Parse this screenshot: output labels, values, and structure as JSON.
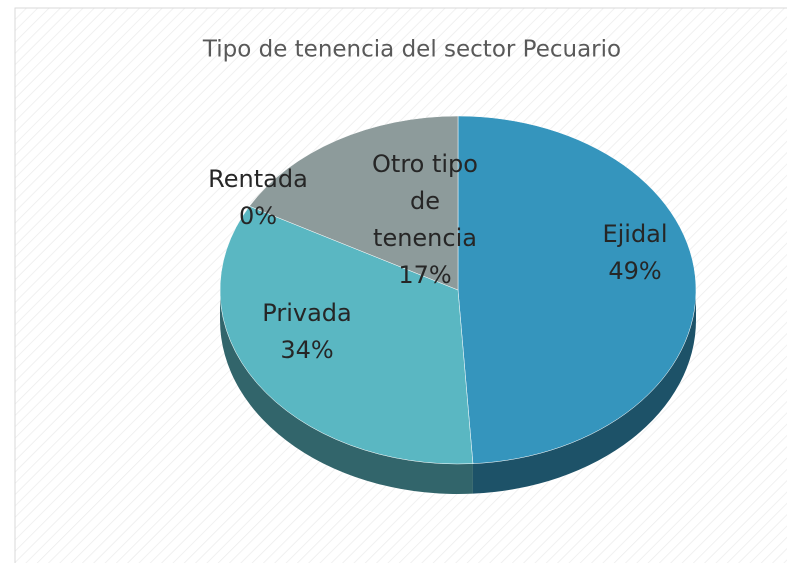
{
  "chart_data": {
    "type": "pie",
    "title": "Tipo de tenencia del sector Pecuario",
    "categories": [
      "Ejidal",
      "Privada",
      "Rentada",
      "Otro tipo de tenencia"
    ],
    "values": [
      49,
      34,
      0,
      17
    ],
    "value_labels": [
      "49%",
      "34%",
      "0%",
      "17%"
    ],
    "colors": [
      "#3595bd",
      "#5ab7c2",
      "#4f9fae",
      "#8d9b9b"
    ]
  }
}
